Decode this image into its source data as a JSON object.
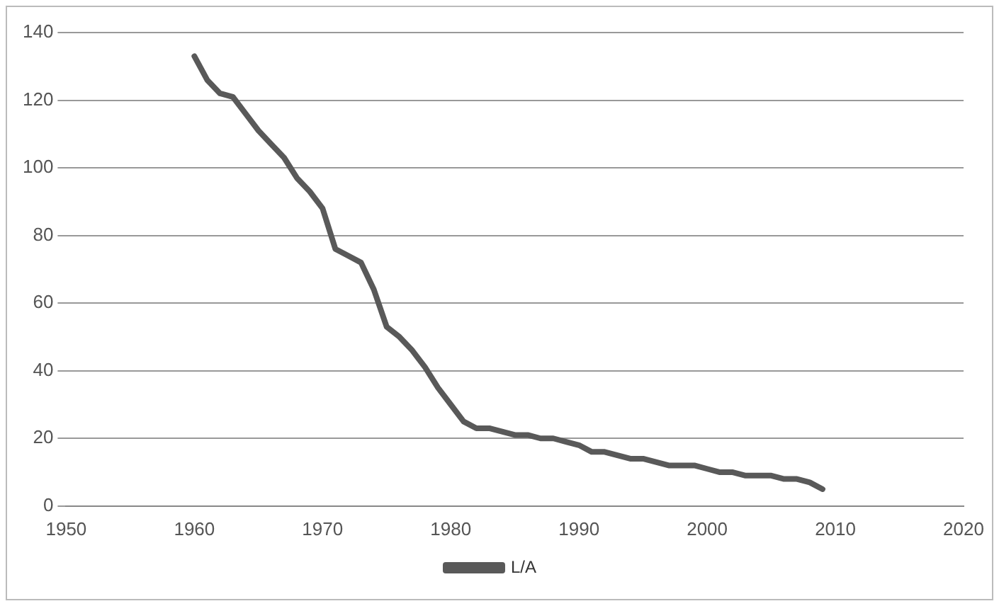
{
  "chart_data": {
    "type": "line",
    "x": [
      1960,
      1961,
      1962,
      1963,
      1964,
      1965,
      1966,
      1967,
      1968,
      1969,
      1970,
      1971,
      1972,
      1973,
      1974,
      1975,
      1976,
      1977,
      1978,
      1979,
      1980,
      1981,
      1982,
      1983,
      1984,
      1985,
      1986,
      1987,
      1988,
      1989,
      1990,
      1991,
      1992,
      1993,
      1994,
      1995,
      1996,
      1997,
      1998,
      1999,
      2000,
      2001,
      2002,
      2003,
      2004,
      2005,
      2006,
      2007,
      2008,
      2009
    ],
    "series": [
      {
        "name": "L/A",
        "color": "#595959",
        "values": [
          133,
          126,
          122,
          121,
          116,
          111,
          107,
          103,
          97,
          93,
          88,
          76,
          74,
          72,
          64,
          53,
          50,
          46,
          41,
          35,
          30,
          25,
          23,
          23,
          22,
          21,
          21,
          20,
          20,
          19,
          18,
          16,
          16,
          15,
          14,
          14,
          13,
          12,
          12,
          12,
          11,
          10,
          10,
          9,
          9,
          9,
          8,
          8,
          7,
          5
        ]
      }
    ],
    "xlim": [
      1950,
      2020
    ],
    "xticks": [
      1950,
      1960,
      1970,
      1980,
      1990,
      2000,
      2010,
      2020
    ],
    "ylim": [
      0,
      140
    ],
    "yticks": [
      0,
      20,
      40,
      60,
      80,
      100,
      120,
      140
    ],
    "grid": "y",
    "legend": "bottom",
    "marker": "none",
    "line_style": "solid"
  }
}
